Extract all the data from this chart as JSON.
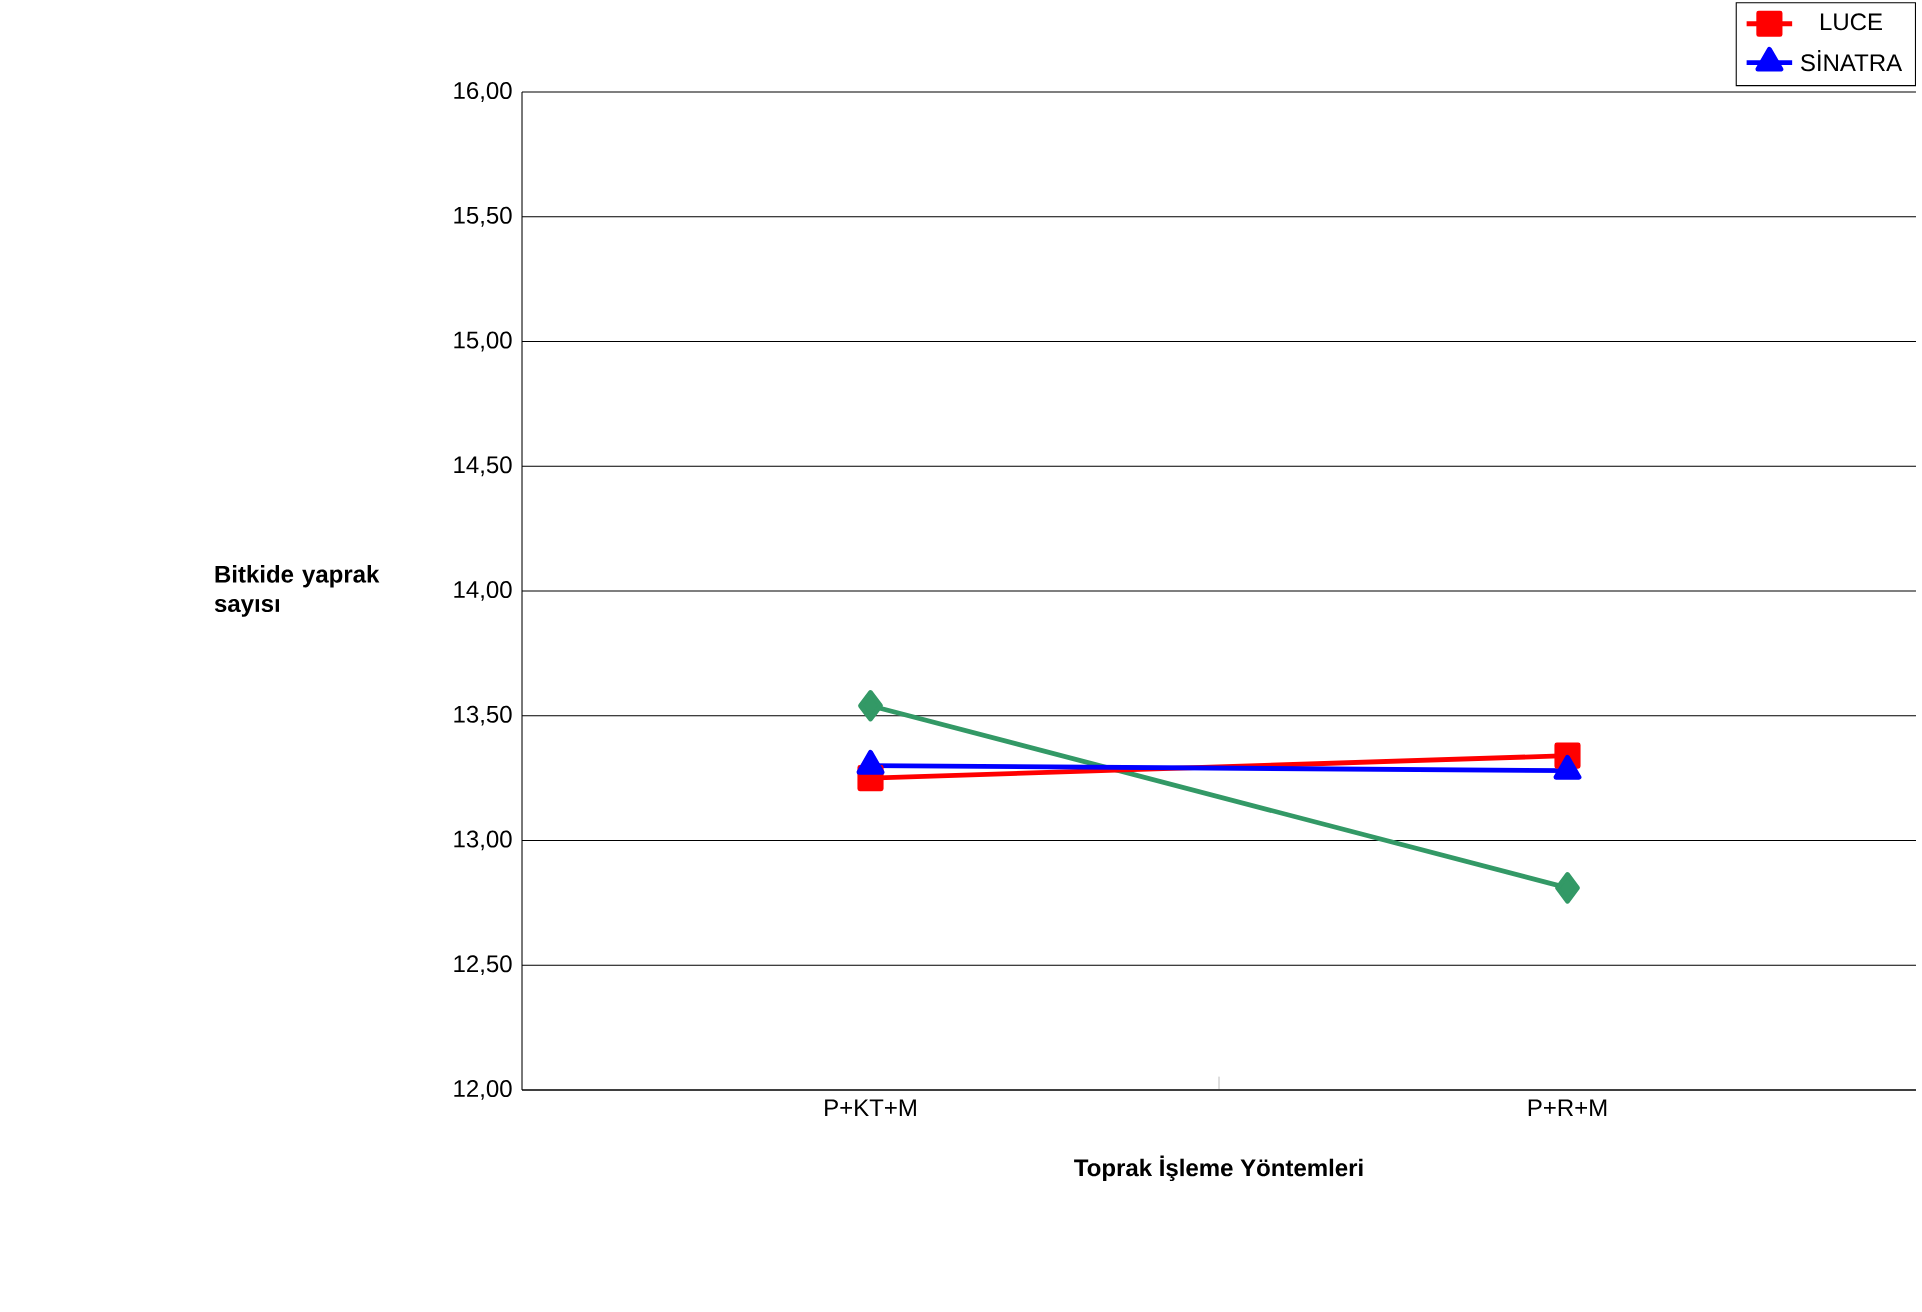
{
  "chart_data": {
    "type": "line",
    "xlabel": "Toprak İşleme Yöntemleri",
    "ylabel": "Bitkide yaprak sayısı",
    "categories": [
      "P+KT+M",
      "P+R+M"
    ],
    "ylim": [
      12,
      16
    ],
    "yticks": [
      {
        "value": 12,
        "label": "12,00"
      },
      {
        "value": 12.5,
        "label": "12,50"
      },
      {
        "value": 13,
        "label": "13,00"
      },
      {
        "value": 13.5,
        "label": "13,50"
      },
      {
        "value": 14,
        "label": "14,00"
      },
      {
        "value": 14.5,
        "label": "14,50"
      },
      {
        "value": 15,
        "label": "15,00"
      },
      {
        "value": 15.5,
        "label": "15,50"
      },
      {
        "value": 16,
        "label": "16,00"
      }
    ],
    "grid": "y",
    "legend": "top right",
    "series": [
      {
        "color": "#339966",
        "marker": "diamond",
        "values": [
          13.54,
          12.81
        ]
      },
      {
        "name": "LUCE",
        "color": "#ff0000",
        "marker": "square",
        "values": [
          13.25,
          13.34
        ]
      },
      {
        "name": "SİNATRA",
        "color": "#0000ff",
        "marker": "triangle",
        "values": [
          13.3,
          13.28
        ]
      }
    ]
  }
}
